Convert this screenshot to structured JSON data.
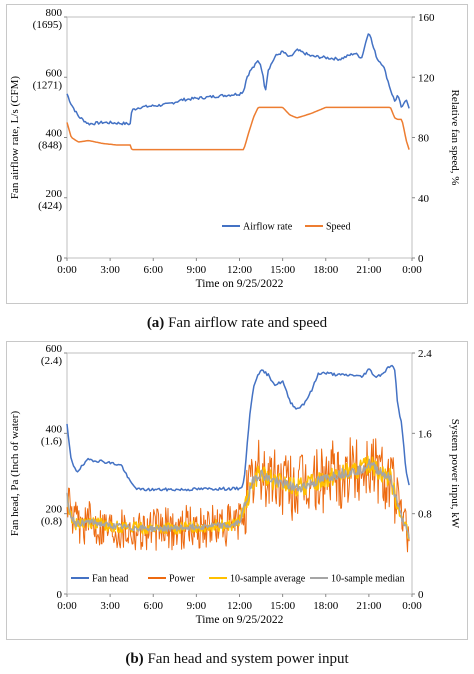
{
  "chart_data": [
    {
      "type": "line",
      "title": "",
      "xlabel": "Time on 9/25/2022",
      "ylabel_left": "Fan airflow rate, L/s (CFM)",
      "ylabel_right": "Relative fan speed, %",
      "x_ticks": [
        "0:00",
        "3:00",
        "6:00",
        "9:00",
        "12:00",
        "15:00",
        "18:00",
        "21:00",
        "0:00"
      ],
      "y_left_ticks": [
        {
          "value": 800,
          "label": "800",
          "sub": "(1695)"
        },
        {
          "value": 600,
          "label": "600",
          "sub": "(1271)"
        },
        {
          "value": 400,
          "label": "400",
          "sub": "(848)"
        },
        {
          "value": 200,
          "label": "200",
          "sub": "(424)"
        },
        {
          "value": 0,
          "label": "0",
          "sub": ""
        }
      ],
      "y_right_ticks": [
        "160",
        "120",
        "80",
        "40",
        "0"
      ],
      "ylim_left": [
        0,
        800
      ],
      "ylim_right": [
        0,
        160
      ],
      "xlim_hours": [
        0,
        24
      ],
      "legend": {
        "placement": "bottom-center",
        "entries": [
          "Airflow rate",
          "Speed"
        ]
      },
      "series": [
        {
          "name": "Airflow rate",
          "axis": "left",
          "color": "#4472C4",
          "x_hours": [
            0,
            0.3,
            0.8,
            1.5,
            2.5,
            3.5,
            4.4,
            4.5,
            5,
            6,
            7,
            8,
            9,
            10,
            11,
            12,
            12.3,
            12.5,
            12.8,
            13,
            13.3,
            13.5,
            13.8,
            14,
            14.5,
            15,
            15.5,
            16,
            17,
            18,
            19,
            20,
            20.5,
            21,
            21.3,
            21.6,
            22,
            22.5,
            22.8,
            23,
            23.3,
            23.6,
            23.8
          ],
          "values": [
            545,
            510,
            470,
            445,
            450,
            448,
            445,
            490,
            500,
            505,
            510,
            525,
            530,
            535,
            540,
            545,
            555,
            600,
            625,
            635,
            655,
            640,
            555,
            625,
            670,
            685,
            665,
            690,
            670,
            665,
            660,
            680,
            665,
            755,
            700,
            660,
            640,
            560,
            520,
            540,
            495,
            530,
            500
          ]
        },
        {
          "name": "Speed",
          "axis": "right",
          "color": "#ED7D31",
          "x_hours": [
            0,
            0.3,
            0.8,
            1.5,
            2.5,
            3.5,
            4.4,
            4.5,
            6,
            8,
            10,
            12,
            12.3,
            12.6,
            13,
            13.3,
            14,
            15,
            15.5,
            16,
            17,
            18,
            19,
            21,
            22,
            22.5,
            22.8,
            23,
            23.3,
            23.6,
            23.8
          ],
          "values": [
            90,
            80,
            77,
            78,
            76,
            75,
            75,
            72,
            72,
            72,
            72,
            72,
            72,
            82,
            94,
            100,
            100,
            100,
            95,
            93,
            96,
            100,
            100,
            100,
            100,
            100,
            93,
            92,
            92,
            78,
            72
          ]
        }
      ]
    },
    {
      "type": "line",
      "title": "",
      "xlabel": "Time on 9/25/2022",
      "ylabel_left": "Fan head, Pa (Inch of water)",
      "ylabel_right": "System power input, kW",
      "x_ticks": [
        "0:00",
        "3:00",
        "6:00",
        "9:00",
        "12:00",
        "15:00",
        "18:00",
        "21:00",
        "0:00"
      ],
      "y_left_ticks": [
        {
          "value": 600,
          "label": "600",
          "sub": "(2.4)"
        },
        {
          "value": 400,
          "label": "400",
          "sub": "(1.6)"
        },
        {
          "value": 200,
          "label": "200",
          "sub": "(0.8)"
        },
        {
          "value": 0,
          "label": "0",
          "sub": ""
        }
      ],
      "y_right_ticks": [
        "2.4",
        "1.6",
        "0.8",
        "0"
      ],
      "ylim_left": [
        0,
        600
      ],
      "ylim_right": [
        0,
        2.4
      ],
      "xlim_hours": [
        0,
        24
      ],
      "legend": {
        "placement": "bottom-center",
        "entries": [
          "Fan head",
          "Power",
          "10-sample average",
          "10-sample median"
        ]
      },
      "series": [
        {
          "name": "Fan head",
          "axis": "left",
          "color": "#4472C4",
          "x_hours": [
            0,
            0.3,
            0.7,
            1.5,
            2.5,
            3.2,
            3.8,
            4.3,
            4.6,
            5,
            6,
            8,
            10,
            11,
            12,
            12.3,
            12.5,
            12.7,
            13,
            13.3,
            13.6,
            14,
            14.5,
            15,
            15.5,
            16,
            16.5,
            17,
            17.5,
            18,
            19,
            20,
            20.5,
            21,
            21.5,
            22,
            22.5,
            22.8,
            23,
            23.3,
            23.6,
            23.8
          ],
          "values": [
            420,
            330,
            305,
            335,
            330,
            325,
            320,
            285,
            270,
            260,
            260,
            260,
            262,
            262,
            262,
            275,
            360,
            440,
            520,
            550,
            555,
            545,
            520,
            530,
            480,
            460,
            475,
            505,
            550,
            550,
            545,
            545,
            540,
            560,
            540,
            550,
            570,
            560,
            470,
            420,
            300,
            270
          ]
        },
        {
          "name": "Power",
          "axis": "right",
          "color": "#ED6A10",
          "x_hours": [
            0,
            0.2,
            0.6,
            1.5,
            3,
            4.5,
            6,
            8,
            10,
            11.5,
            12,
            12.4,
            12.8,
            13,
            13.5,
            14,
            15,
            16,
            17,
            18,
            19,
            20,
            20.5,
            21,
            21.5,
            22,
            22.5,
            23,
            23.3,
            23.6,
            23.8
          ],
          "values": [
            1.0,
            0.8,
            0.7,
            0.72,
            0.68,
            0.66,
            0.65,
            0.66,
            0.68,
            0.68,
            0.72,
            0.9,
            1.05,
            1.15,
            1.2,
            1.15,
            1.1,
            1.05,
            1.1,
            1.15,
            1.2,
            1.22,
            1.25,
            1.3,
            1.25,
            1.2,
            1.15,
            0.9,
            0.75,
            0.65,
            0.55
          ],
          "noise_amplitude": 0.22
        },
        {
          "name": "10-sample average",
          "axis": "right",
          "color": "#FFC000",
          "x_hours": [
            0,
            0.2,
            0.6,
            1.5,
            3,
            4.5,
            6,
            8,
            10,
            11.5,
            12,
            12.4,
            12.8,
            13,
            13.5,
            14,
            15,
            16,
            17,
            18,
            19,
            20,
            20.5,
            21,
            21.5,
            22,
            22.5,
            23,
            23.3,
            23.6,
            23.8
          ],
          "values": [
            1.0,
            0.8,
            0.7,
            0.72,
            0.68,
            0.66,
            0.65,
            0.66,
            0.68,
            0.68,
            0.72,
            0.9,
            1.05,
            1.15,
            1.2,
            1.15,
            1.1,
            1.05,
            1.1,
            1.15,
            1.2,
            1.22,
            1.25,
            1.3,
            1.25,
            1.2,
            1.15,
            0.9,
            0.75,
            0.65,
            0.55
          ],
          "noise_amplitude": 0.06
        },
        {
          "name": "10-sample median",
          "axis": "right",
          "color": "#A5A5A5",
          "x_hours": [
            0,
            0.2,
            0.6,
            1.5,
            3,
            4.5,
            6,
            8,
            10,
            11.5,
            12,
            12.4,
            12.8,
            13,
            13.5,
            14,
            15,
            16,
            17,
            18,
            19,
            20,
            20.5,
            21,
            21.5,
            22,
            22.5,
            23,
            23.3,
            23.6,
            23.8
          ],
          "values": [
            1.0,
            0.8,
            0.7,
            0.72,
            0.68,
            0.66,
            0.65,
            0.66,
            0.68,
            0.68,
            0.72,
            0.9,
            1.05,
            1.15,
            1.2,
            1.15,
            1.1,
            1.05,
            1.1,
            1.15,
            1.2,
            1.22,
            1.25,
            1.3,
            1.25,
            1.2,
            1.15,
            0.9,
            0.75,
            0.65,
            0.55
          ],
          "noise_amplitude": 0.03
        }
      ]
    }
  ],
  "captions": [
    {
      "tag": "(a)",
      "text": "Fan airflow rate and speed"
    },
    {
      "tag": "(b)",
      "text": "Fan head and system power input"
    }
  ]
}
